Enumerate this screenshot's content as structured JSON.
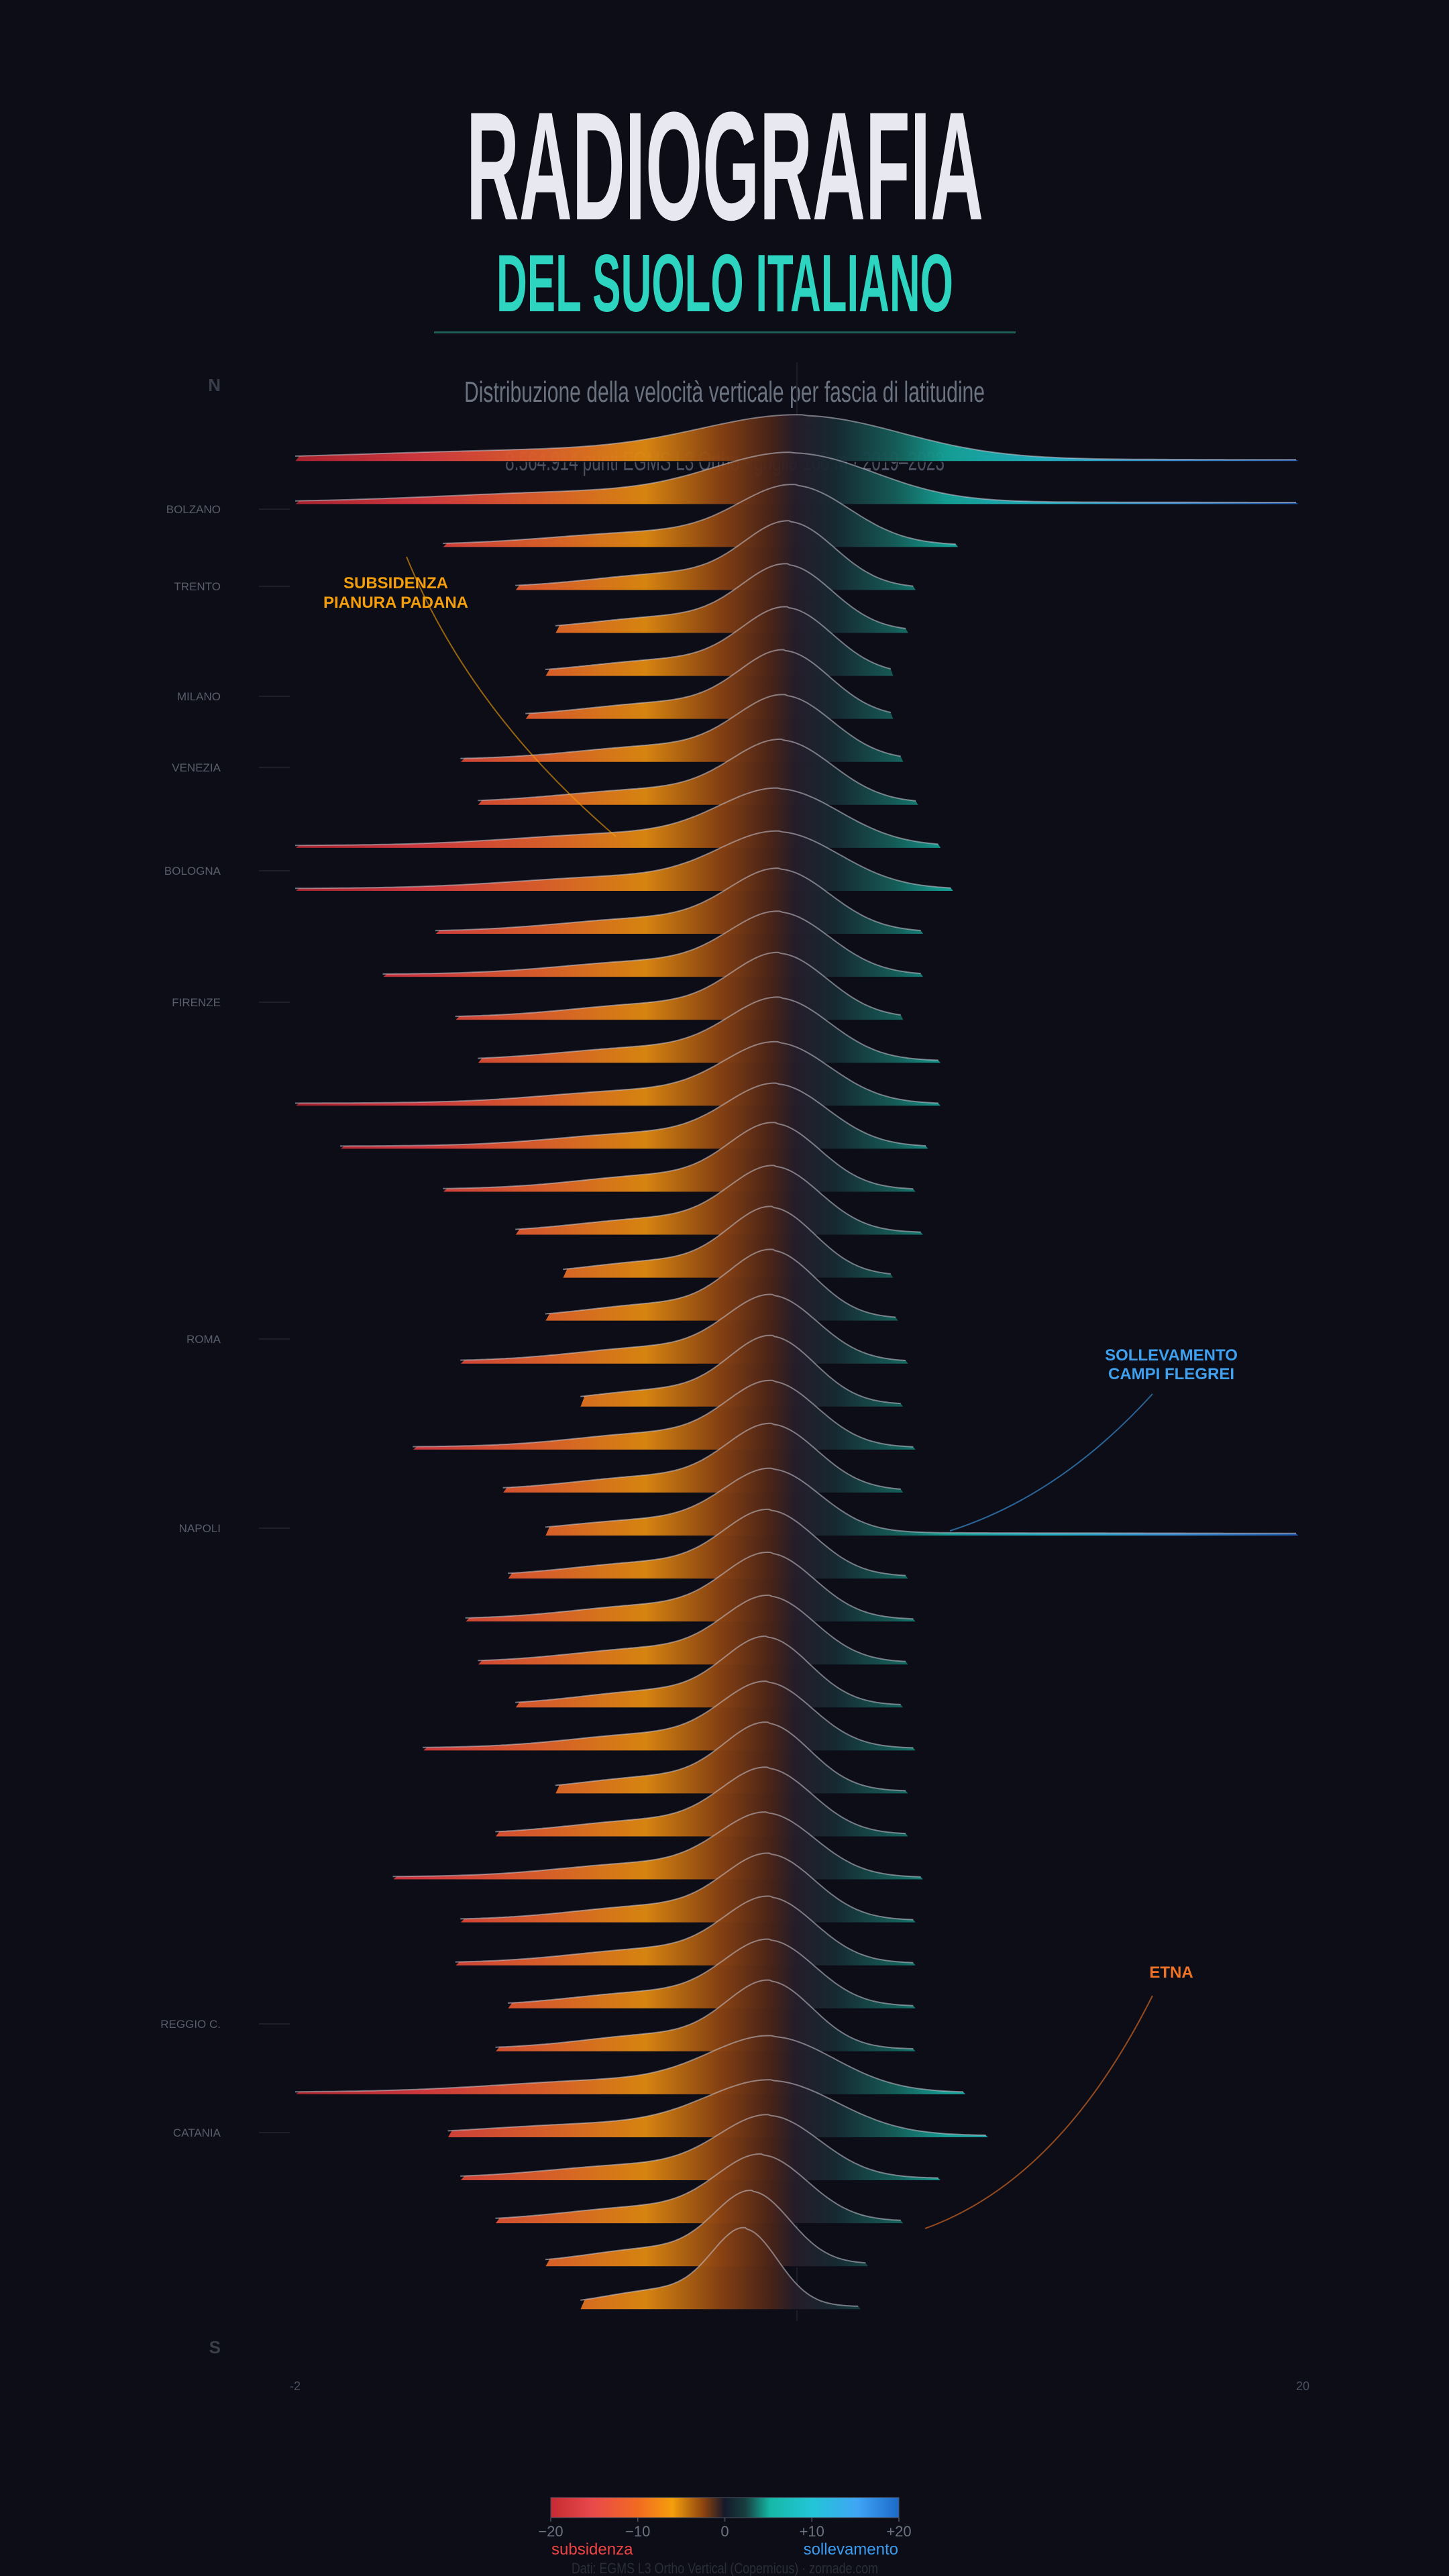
{
  "header": {
    "title": "RADIOGRAFIA",
    "subtitle": "DEL SUOLO ITALIANO",
    "description": "Distribuzione della velocità verticale per fascia di latitudine",
    "meta": "8.564.914 punti EGMS L3 Ortho · griglia 100 m · 2019–2023"
  },
  "chart_data": {
    "type": "ridgeline",
    "xlim": [
      -20,
      20
    ],
    "x_tick_labels": [
      "-2",
      "20"
    ],
    "north_label": "N",
    "south_label": "S",
    "cities": [
      "BOLZANO",
      "TRENTO",
      "MILANO",
      "VENEZIA",
      "BOLOGNA",
      "FIRENZE",
      "ROMA",
      "NAPOLI",
      "REGGIO C.",
      "CATANIA"
    ],
    "ridges": [
      {
        "min": -20,
        "max": 20,
        "mode": 0.3,
        "sigma": 4.0
      },
      {
        "min": -20,
        "max": 20,
        "mode": 0.0,
        "sigma": 3.2
      },
      {
        "min": -14.1,
        "max": 6.4,
        "mode": 0.0,
        "sigma": 2.2
      },
      {
        "min": -11.2,
        "max": 4.7,
        "mode": -0.2,
        "sigma": 1.8
      },
      {
        "min": -9.6,
        "max": 4.4,
        "mode": -0.3,
        "sigma": 1.8
      },
      {
        "min": -10.0,
        "max": 3.8,
        "mode": -0.3,
        "sigma": 1.8
      },
      {
        "min": -10.8,
        "max": 3.8,
        "mode": -0.4,
        "sigma": 1.8
      },
      {
        "min": -13.4,
        "max": 4.2,
        "mode": -0.4,
        "sigma": 1.9
      },
      {
        "min": -12.7,
        "max": 4.8,
        "mode": -0.5,
        "sigma": 2.0
      },
      {
        "min": -20,
        "max": 5.7,
        "mode": -0.6,
        "sigma": 2.4
      },
      {
        "min": -20,
        "max": 6.2,
        "mode": -0.6,
        "sigma": 2.4
      },
      {
        "min": -14.4,
        "max": 5.0,
        "mode": -0.6,
        "sigma": 2.0
      },
      {
        "min": -16.5,
        "max": 5.0,
        "mode": -0.6,
        "sigma": 2.0
      },
      {
        "min": -13.6,
        "max": 4.2,
        "mode": -0.6,
        "sigma": 1.9
      },
      {
        "min": -12.7,
        "max": 5.7,
        "mode": -0.6,
        "sigma": 2.0
      },
      {
        "min": -20,
        "max": 5.7,
        "mode": -0.7,
        "sigma": 2.1
      },
      {
        "min": -18.2,
        "max": 5.2,
        "mode": -0.7,
        "sigma": 2.0
      },
      {
        "min": -14.1,
        "max": 4.7,
        "mode": -0.8,
        "sigma": 1.8
      },
      {
        "min": -11.2,
        "max": 5.0,
        "mode": -0.8,
        "sigma": 1.8
      },
      {
        "min": -9.3,
        "max": 3.8,
        "mode": -0.9,
        "sigma": 1.7
      },
      {
        "min": -10.0,
        "max": 4.0,
        "mode": -0.9,
        "sigma": 1.7
      },
      {
        "min": -13.4,
        "max": 4.4,
        "mode": -0.9,
        "sigma": 1.8
      },
      {
        "min": -8.6,
        "max": 4.2,
        "mode": -0.9,
        "sigma": 1.7
      },
      {
        "min": -15.3,
        "max": 4.7,
        "mode": -0.9,
        "sigma": 1.8
      },
      {
        "min": -11.7,
        "max": 4.2,
        "mode": -0.9,
        "sigma": 1.8
      },
      {
        "min": -10.0,
        "max": 20,
        "mode": -0.9,
        "sigma": 1.9
      },
      {
        "min": -11.5,
        "max": 4.4,
        "mode": -1.0,
        "sigma": 1.8
      },
      {
        "min": -13.2,
        "max": 4.7,
        "mode": -1.0,
        "sigma": 1.8
      },
      {
        "min": -12.7,
        "max": 4.4,
        "mode": -1.0,
        "sigma": 1.8
      },
      {
        "min": -11.2,
        "max": 4.2,
        "mode": -1.1,
        "sigma": 1.7
      },
      {
        "min": -14.9,
        "max": 4.7,
        "mode": -1.1,
        "sigma": 1.8
      },
      {
        "min": -9.6,
        "max": 4.4,
        "mode": -1.1,
        "sigma": 1.7
      },
      {
        "min": -12.0,
        "max": 4.4,
        "mode": -1.1,
        "sigma": 1.8
      },
      {
        "min": -16.1,
        "max": 5.0,
        "mode": -1.1,
        "sigma": 1.9
      },
      {
        "min": -13.4,
        "max": 4.7,
        "mode": -1.0,
        "sigma": 1.8
      },
      {
        "min": -13.6,
        "max": 4.7,
        "mode": -1.0,
        "sigma": 1.8
      },
      {
        "min": -11.5,
        "max": 4.7,
        "mode": -1.0,
        "sigma": 1.8
      },
      {
        "min": -12.0,
        "max": 4.7,
        "mode": -1.0,
        "sigma": 1.7
      },
      {
        "min": -20,
        "max": 6.7,
        "mode": -0.9,
        "sigma": 2.5
      },
      {
        "min": -13.9,
        "max": 7.6,
        "mode": -0.9,
        "sigma": 2.6
      },
      {
        "min": -13.4,
        "max": 5.7,
        "mode": -1.0,
        "sigma": 2.0
      },
      {
        "min": -12.0,
        "max": 4.2,
        "mode": -1.3,
        "sigma": 1.8
      },
      {
        "min": -10.0,
        "max": 2.8,
        "mode": -1.7,
        "sigma": 1.5
      },
      {
        "min": -8.6,
        "max": 2.5,
        "mode": -2.0,
        "sigma": 1.3
      }
    ],
    "annotations": [
      {
        "line1": "SUBSIDENZA",
        "line2": "PIANURA PADANA",
        "color": "#f59e0b"
      },
      {
        "line1": "SOLLEVAMENTO",
        "line2": "CAMPI FLEGREI",
        "color": "#3fa0ef"
      },
      {
        "line1": "ETNA",
        "line2": "",
        "color": "#f07325"
      }
    ],
    "colorbar": {
      "ticks": [
        "−20",
        "−10",
        "0",
        "+10",
        "+20"
      ],
      "left_label": "subsidenza",
      "right_label": "sollevamento",
      "left_color": "#ef4444",
      "right_color": "#3b9cf0"
    }
  },
  "footer": "Dati: EGMS L3 Ortho Vertical (Copernicus) · zornade.com"
}
